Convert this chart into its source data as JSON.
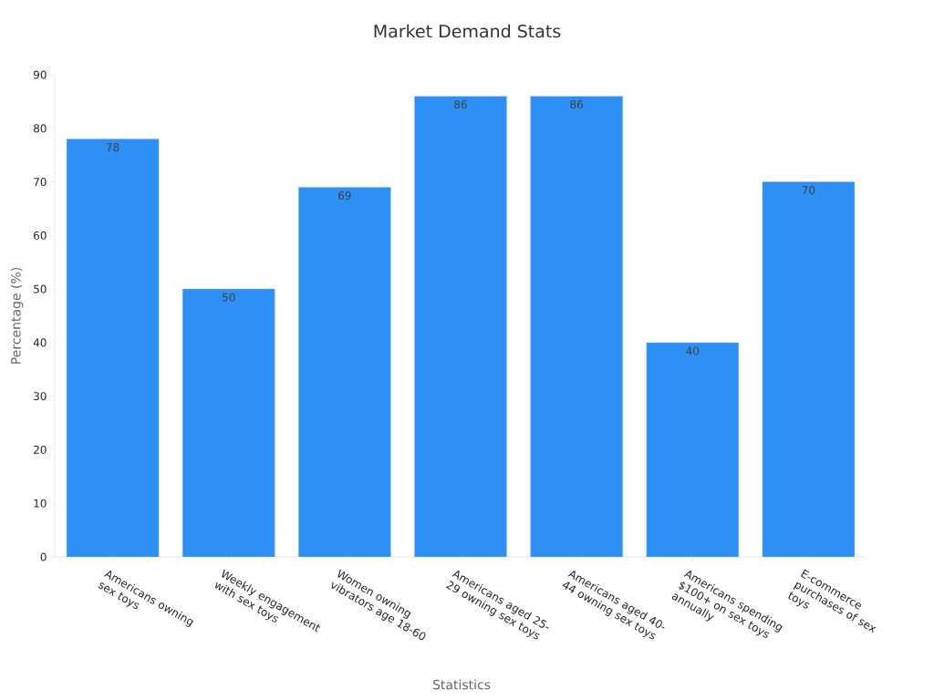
{
  "chart_data": {
    "type": "bar",
    "title": "Market Demand Stats",
    "xlabel": "Statistics",
    "ylabel": "Percentage (%)",
    "categories": [
      "Americans owning sex toys",
      "Weekly engagement with sex toys",
      "Women owning vibrators age 18-60",
      "Americans aged 25-29 owning sex toys",
      "Americans aged 40-44 owning sex toys",
      "Americans spending $100+ on sex toys annually",
      "E-commerce purchases of sex toys"
    ],
    "values": [
      78,
      50,
      69,
      86,
      86,
      40,
      70
    ],
    "color": "#2e90f5",
    "ylim": [
      0,
      90
    ],
    "yticks": [
      0,
      10,
      20,
      30,
      40,
      50,
      60,
      70,
      80,
      90
    ],
    "data_labels": true,
    "grid": false
  }
}
